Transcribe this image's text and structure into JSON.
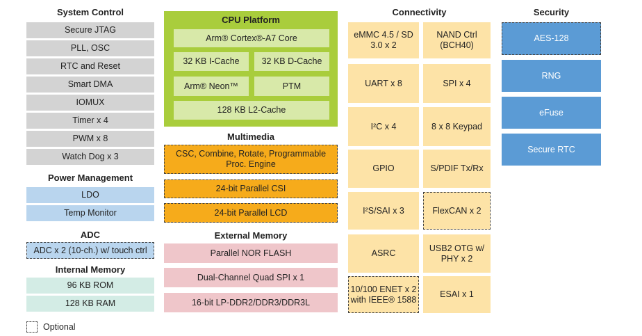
{
  "colors": {
    "system": "#d3d3d3",
    "power": "#b9d5ee",
    "memory": "#d3ece5",
    "cpu": "#a9cd3c",
    "multimedia": "#f6ab1b",
    "external_memory": "#efc6ca",
    "connectivity": "#fde3a7",
    "security": "#5b9bd5"
  },
  "system_control": {
    "title": "System Control",
    "items": [
      "Secure JTAG",
      "PLL, OSC",
      "RTC and Reset",
      "Smart DMA",
      "IOMUX",
      "Timer x 4",
      "PWM x 8",
      "Watch Dog x 3"
    ]
  },
  "power_management": {
    "title": "Power Management",
    "items": [
      "LDO",
      "Temp Monitor"
    ]
  },
  "adc": {
    "title": "ADC",
    "items": [
      "ADC x 2 (10-ch.) w/ touch ctrl"
    ],
    "optional": [
      true
    ]
  },
  "internal_memory": {
    "title": "Internal Memory",
    "items": [
      "96 KB ROM",
      "128 KB RAM"
    ]
  },
  "cpu_platform": {
    "title": "CPU Platform",
    "items": [
      "Arm® Cortex®-A7 Core",
      "32 KB I-Cache",
      "32 KB D-Cache",
      "Arm® Neon™",
      "PTM",
      "128 KB L2-Cache"
    ]
  },
  "multimedia": {
    "title": "Multimedia",
    "items": [
      "CSC, Combine, Rotate, Programmable Proc. Engine",
      "24-bit Parallel CSI",
      "24-bit Parallel LCD"
    ],
    "optional": [
      true,
      true,
      true
    ]
  },
  "external_memory": {
    "title": "External Memory",
    "items": [
      "Parallel NOR FLASH",
      "Dual-Channel Quad SPI  x 1",
      "16-bit LP-DDR2/DDR3/DDR3L"
    ]
  },
  "connectivity": {
    "title": "Connectivity",
    "items": [
      "eMMC 4.5 / SD 3.0 x 2",
      "NAND Ctrl (BCH40)",
      "UART x 8",
      "SPI  x 4",
      "I²C x 4",
      "8 x 8 Keypad",
      "GPIO",
      "S/PDIF Tx/Rx",
      "I²S/SAI x 3",
      "FlexCAN x 2",
      "ASRC",
      "USB2 OTG w/ PHY x 2",
      "10/100 ENET x 2 with IEEE® 1588",
      "ESAI x 1"
    ],
    "optional": [
      false,
      false,
      false,
      false,
      false,
      false,
      false,
      false,
      false,
      true,
      false,
      false,
      true,
      false
    ]
  },
  "security": {
    "title": "Security",
    "items": [
      "AES-128",
      "RNG",
      "eFuse",
      "Secure RTC"
    ],
    "optional": [
      true,
      false,
      false,
      false
    ]
  },
  "legend": {
    "label": "Optional"
  }
}
